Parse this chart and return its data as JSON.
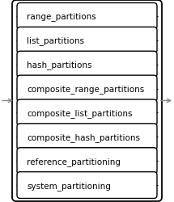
{
  "items": [
    "range_partitions",
    "list_partitions",
    "hash_partitions",
    "composite_range_partitions",
    "composite_list_partitions",
    "composite_hash_partitions",
    "reference_partitioning",
    "system_partitioning"
  ],
  "bg_color": "#ffffff",
  "border_color": "#000000",
  "text_color": "#000000",
  "arrow_color": "#888888",
  "font_size": 7.5,
  "fig_w": 2.15,
  "fig_h": 2.51,
  "dpi": 100
}
